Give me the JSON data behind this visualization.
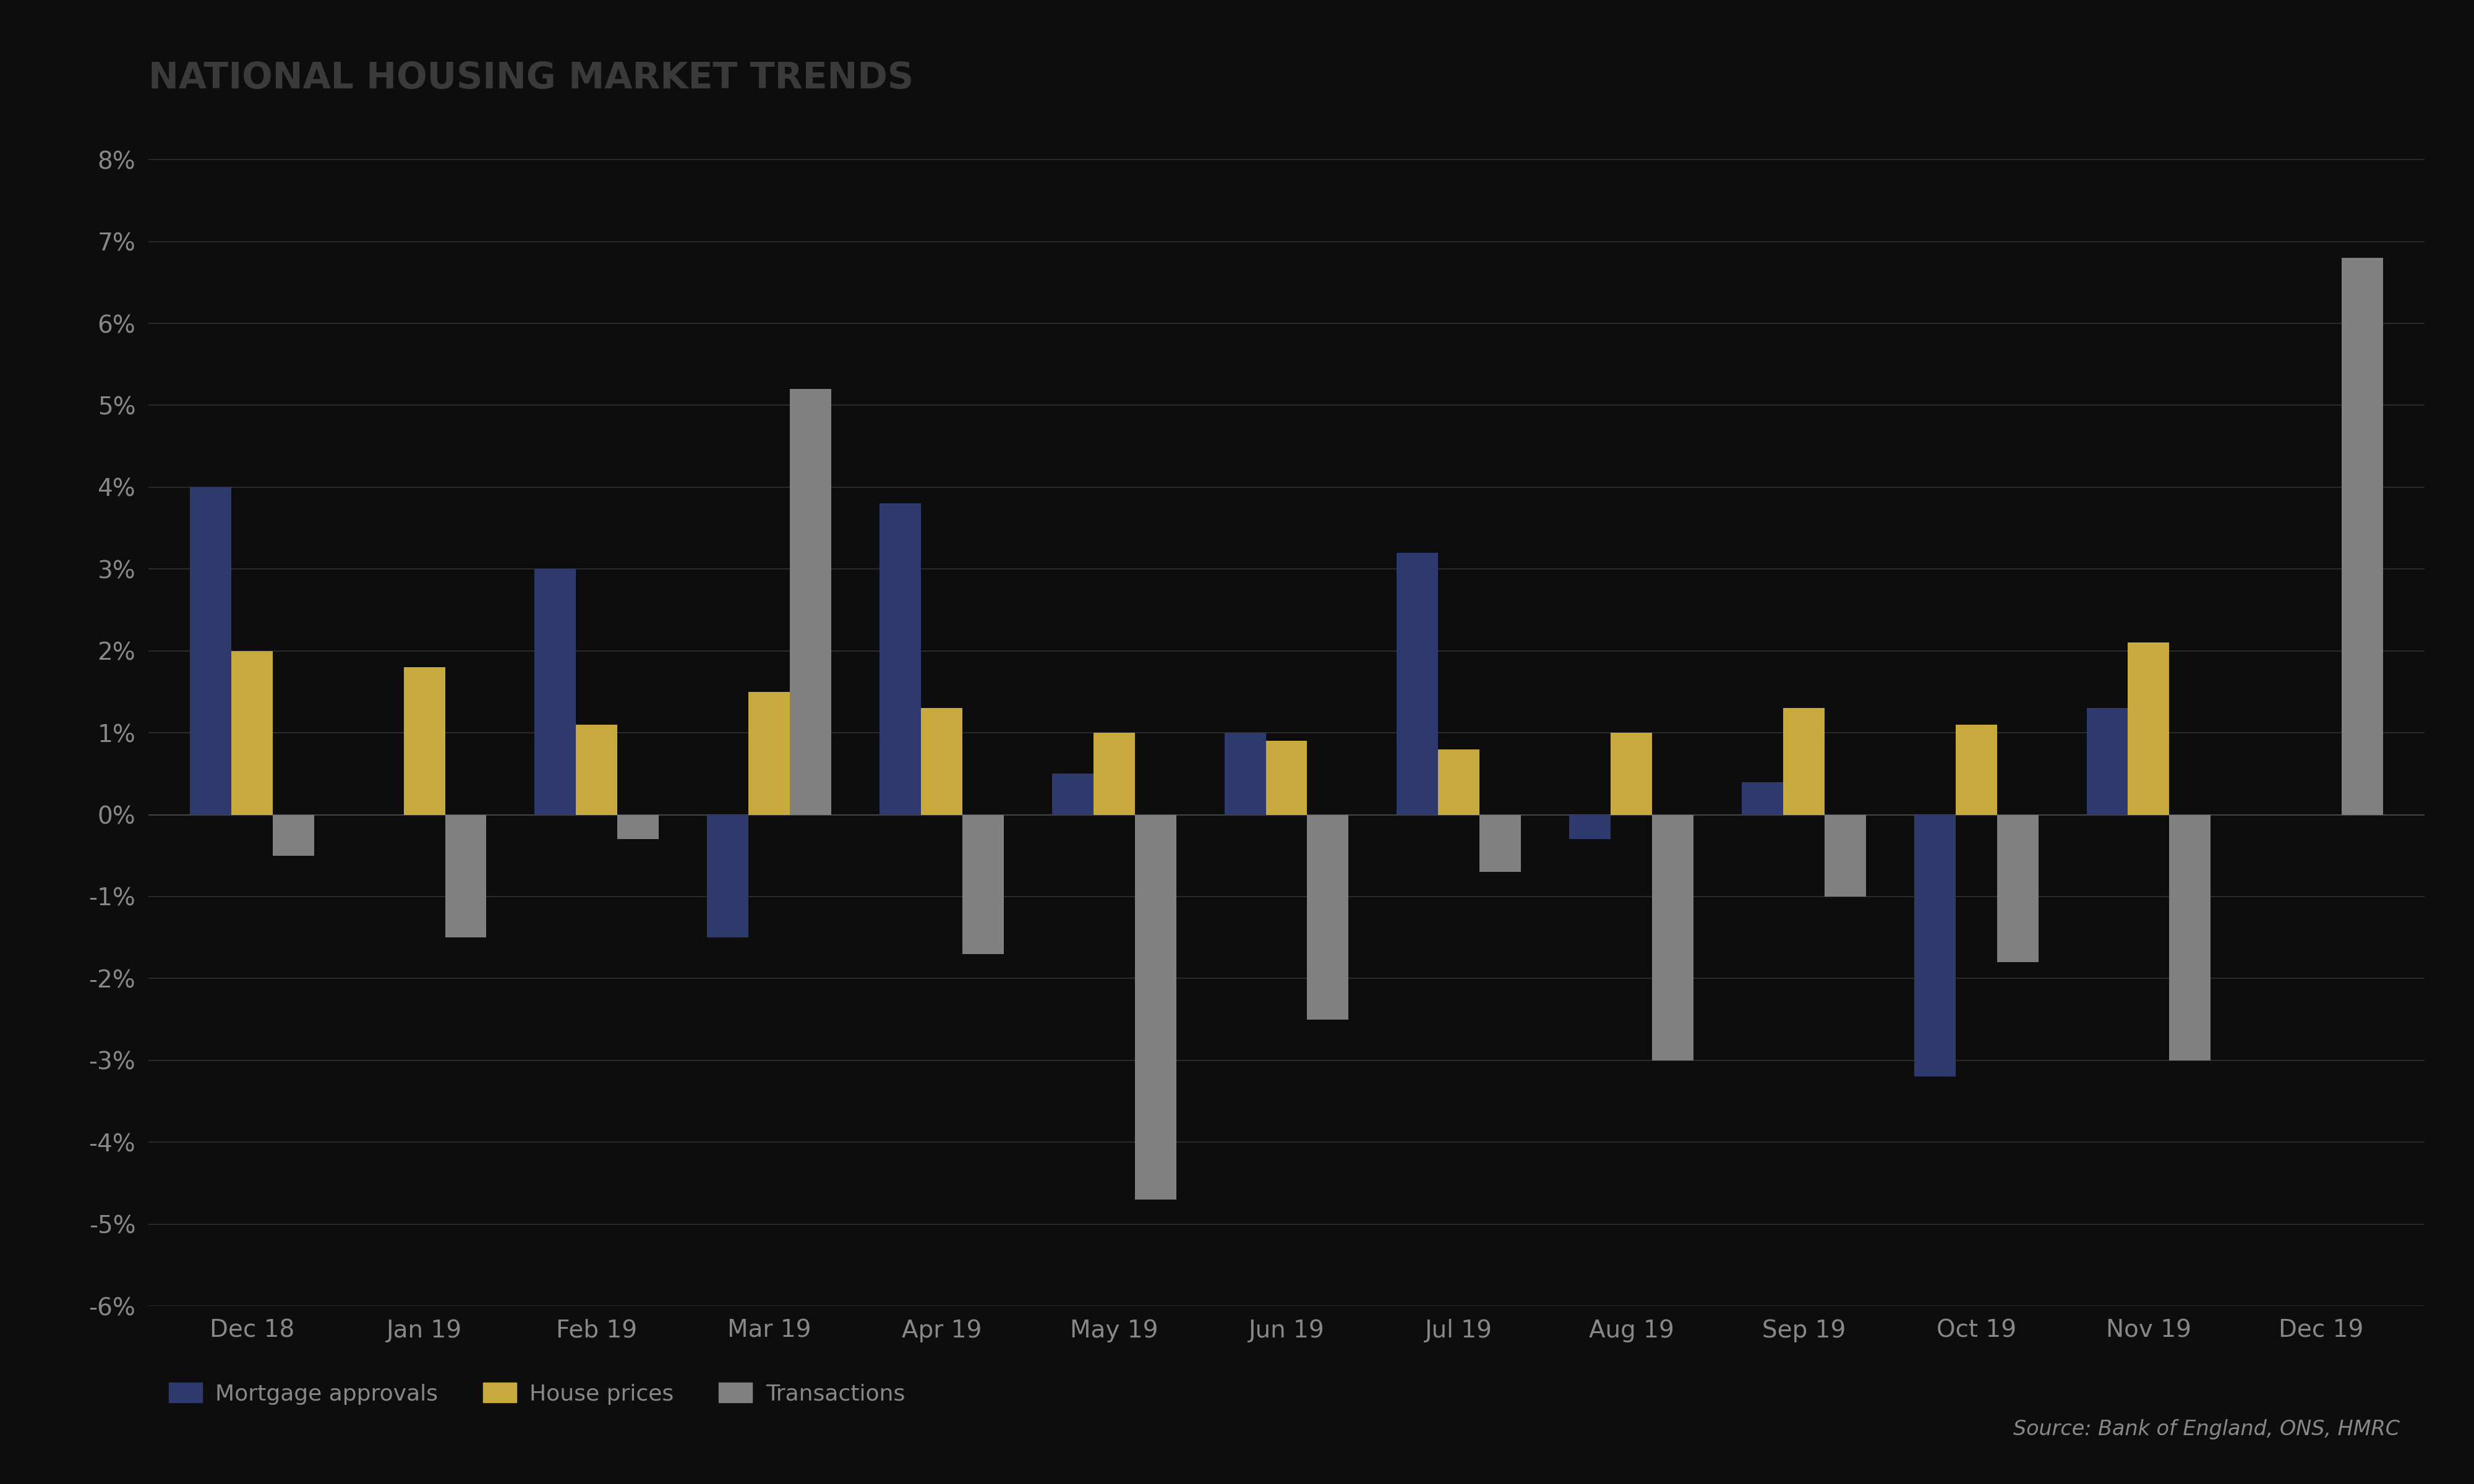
{
  "title": "NATIONAL HOUSING MARKET TRENDS",
  "categories": [
    "Dec 18",
    "Jan 19",
    "Feb 19",
    "Mar 19",
    "Apr 19",
    "May 19",
    "Jun 19",
    "Jul 19",
    "Aug 19",
    "Sep 19",
    "Oct 19",
    "Nov 19",
    "Dec 19"
  ],
  "mortgage_approvals": [
    4.0,
    0.0,
    3.0,
    -1.5,
    3.8,
    0.5,
    1.0,
    3.2,
    -0.3,
    0.4,
    -3.2,
    1.3,
    0.0
  ],
  "house_prices": [
    2.0,
    1.8,
    1.1,
    1.5,
    1.3,
    1.0,
    0.9,
    0.8,
    1.0,
    1.3,
    1.1,
    2.1,
    0.0
  ],
  "transactions": [
    -0.5,
    -1.5,
    -0.3,
    5.2,
    -1.7,
    -4.7,
    -2.5,
    -0.7,
    -3.0,
    -1.0,
    -1.8,
    -3.0,
    6.8
  ],
  "mortgage_color": "#2e3a6e",
  "house_price_color": "#c8a93e",
  "transaction_color": "#808080",
  "background_color": "#0d0d0d",
  "text_color": "#888888",
  "title_color": "#3a3a3a",
  "grid_color": "#2a2a2a",
  "axis_color": "#555555",
  "ylim": [
    -6,
    8.5
  ],
  "yticks": [
    -6,
    -5,
    -4,
    -3,
    -2,
    -1,
    0,
    1,
    2,
    3,
    4,
    5,
    6,
    7,
    8
  ],
  "source_text": "Source: Bank of England, ONS, HMRC",
  "legend_labels": [
    "Mortgage approvals",
    "House prices",
    "Transactions"
  ],
  "bar_width": 0.24
}
